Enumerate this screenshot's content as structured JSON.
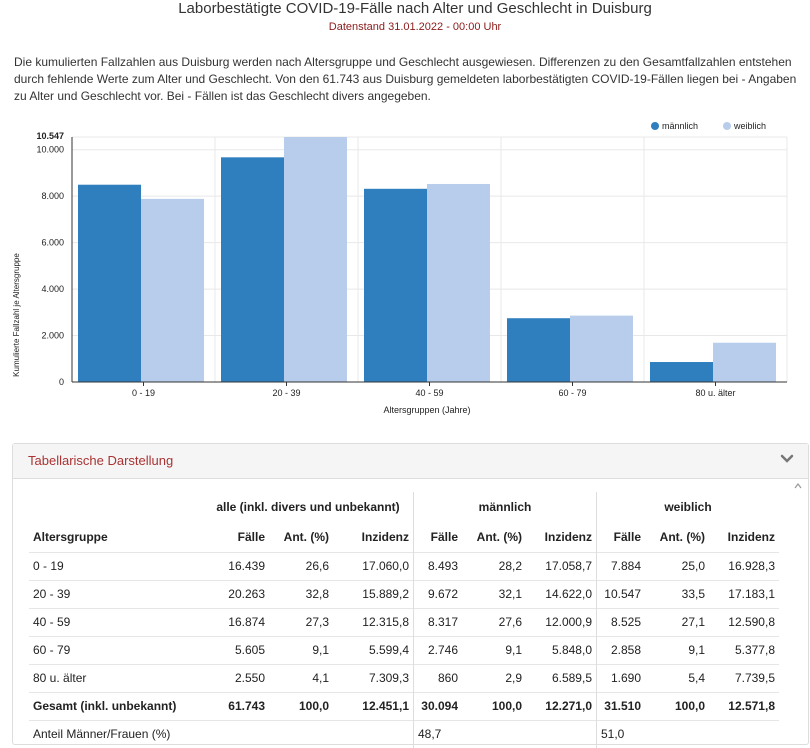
{
  "page": {
    "title": "Laborbestätigte COVID-19-Fälle nach Alter und Geschlecht in Duisburg",
    "subtitle": "Datenstand 31.01.2022 - 00:00 Uhr",
    "intro": "Die kumulierten Fallzahlen aus Duisburg werden nach Altersgruppe und Geschlecht ausgewiesen. Differenzen zu den Gesamtfallzahlen entstehen durch fehlende Werte zum Alter und Geschlecht. Von den 61.743 aus Duisburg gemeldeten laborbestätigten COVID-19-Fällen liegen bei - Angaben zu Alter und Geschlecht vor. Bei - Fällen ist das Geschlecht divers angegeben."
  },
  "chart_data": {
    "type": "bar",
    "categories": [
      "0 - 19",
      "20 - 39",
      "40 - 59",
      "60 - 79",
      "80 u. älter"
    ],
    "series": [
      {
        "name": "männlich",
        "values": [
          8493,
          9672,
          8317,
          2746,
          860
        ],
        "color": "#2f7fbf"
      },
      {
        "name": "weiblich",
        "values": [
          7884,
          10547,
          8525,
          2858,
          1690
        ],
        "color": "#b7cdeb"
      }
    ],
    "xlabel": "Altersgruppen (Jahre)",
    "ylabel": "Kumulierte Fallzahl je Altersgruppe",
    "ylim": [
      0,
      10547
    ],
    "yticks": [
      0,
      2000,
      4000,
      6000,
      8000,
      10000
    ],
    "ytick_labels": [
      "0",
      "2.000",
      "4.000",
      "6.000",
      "8.000",
      "10.000"
    ],
    "ymax_label": "10.547",
    "grid": true,
    "legend": "top-right"
  },
  "table": {
    "panel_title": "Tabellarische Darstellung",
    "group_headers": [
      "alle (inkl. divers und unbekannt)",
      "männlich",
      "weiblich"
    ],
    "columns": [
      "Altersgruppe",
      "Fälle",
      "Ant. (%)",
      "Inzidenz",
      "Fälle",
      "Ant. (%)",
      "Inzidenz",
      "Fälle",
      "Ant. (%)",
      "Inzidenz"
    ],
    "rows": [
      [
        "0 - 19",
        "16.439",
        "26,6",
        "17.060,0",
        "8.493",
        "28,2",
        "17.058,7",
        "7.884",
        "25,0",
        "16.928,3"
      ],
      [
        "20 - 39",
        "20.263",
        "32,8",
        "15.889,2",
        "9.672",
        "32,1",
        "14.622,0",
        "10.547",
        "33,5",
        "17.183,1"
      ],
      [
        "40 - 59",
        "16.874",
        "27,3",
        "12.315,8",
        "8.317",
        "27,6",
        "12.000,9",
        "8.525",
        "27,1",
        "12.590,8"
      ],
      [
        "60 - 79",
        "5.605",
        "9,1",
        "5.599,4",
        "2.746",
        "9,1",
        "5.848,0",
        "2.858",
        "9,1",
        "5.377,8"
      ],
      [
        "80 u. älter",
        "2.550",
        "4,1",
        "7.309,3",
        "860",
        "2,9",
        "6.589,5",
        "1.690",
        "5,4",
        "7.739,5"
      ]
    ],
    "total_row": [
      "Gesamt (inkl. unbekannt)",
      "61.743",
      "100,0",
      "12.451,1",
      "30.094",
      "100,0",
      "12.271,0",
      "31.510",
      "100,0",
      "12.571,8"
    ],
    "share_row": {
      "label": "Anteil Männer/Frauen (%)",
      "male": "48,7",
      "female": "51,0"
    }
  }
}
